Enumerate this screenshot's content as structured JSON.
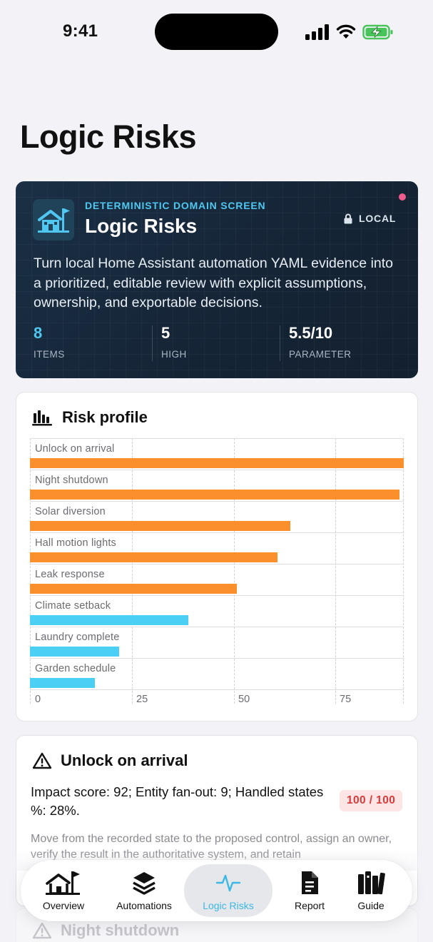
{
  "status_bar": {
    "time": "9:41"
  },
  "page": {
    "title": "Logic Risks"
  },
  "hero": {
    "eyebrow": "DETERMINISTIC DOMAIN SCREEN",
    "title": "Logic Risks",
    "badge": "LOCAL",
    "description": "Turn local Home Assistant automation YAML evidence into a prioritized, editable review with explicit assumptions, ownership, and exportable decisions.",
    "icon": "house-flag-icon",
    "accent_color": "#4fc7f0",
    "stats": [
      {
        "value": "8",
        "label": "ITEMS"
      },
      {
        "value": "5",
        "label": "HIGH"
      },
      {
        "value": "5.5/10",
        "label": "PARAMETER"
      }
    ]
  },
  "risk_profile": {
    "title": "Risk profile",
    "icon": "bar-chart-icon"
  },
  "chart_data": {
    "type": "bar",
    "orientation": "horizontal",
    "categories": [
      "Unlock on arrival",
      "Night shutdown",
      "Solar diversion",
      "Hall motion lights",
      "Leak response",
      "Climate setback",
      "Laundry complete",
      "Garden schedule"
    ],
    "values": [
      92,
      91,
      64,
      61,
      51,
      39,
      22,
      16
    ],
    "xlim": [
      0,
      92
    ],
    "xticks": [
      "0",
      "25",
      "50",
      "75"
    ],
    "high_color": "#fb8f2c",
    "low_color": "#4ccff5",
    "high_threshold": 50,
    "grid": true
  },
  "detail": {
    "title": "Unlock on arrival",
    "icon": "warning-triangle-icon",
    "metrics": "Impact score: 92; Entity fan-out: 9; Handled states %: 28%.",
    "score": "100 / 100",
    "description": "Move from the recorded state to the proposed control, assign an owner, verify the result in the authoritative system, and retain"
  },
  "next_item": {
    "title": "Night shutdown",
    "icon": "warning-triangle-icon"
  },
  "tab_bar": {
    "tabs": [
      {
        "label": "Overview",
        "icon": "house-flag-icon"
      },
      {
        "label": "Automations",
        "icon": "layers-icon"
      },
      {
        "label": "Logic Risks",
        "icon": "pulse-icon",
        "active": true
      },
      {
        "label": "Report",
        "icon": "document-icon"
      },
      {
        "label": "Guide",
        "icon": "books-icon"
      }
    ]
  }
}
